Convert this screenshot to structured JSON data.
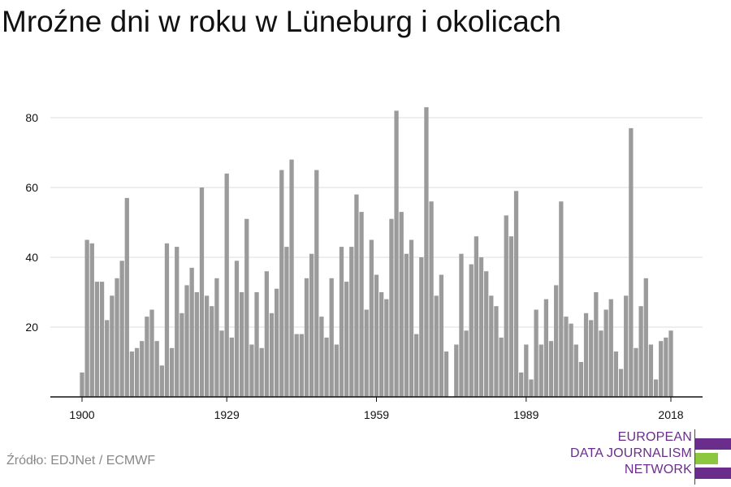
{
  "title": "Mroźne dni w roku w Lüneburg i okolicach",
  "source": "Źródło: EDJNet / ECMWF",
  "logo": {
    "lines": [
      "EUROPEAN",
      "DATA JOURNALISM",
      "NETWORK"
    ],
    "colors": {
      "purple": "#6a2d8c",
      "green": "#8dc63f"
    }
  },
  "colors": {
    "bar": "#9b9b9b",
    "grid": "#dddddd",
    "axis": "#111111"
  },
  "chart_data": {
    "type": "bar",
    "title": "Mroźne dni w roku w Lüneburg i okolicach",
    "xlabel": "",
    "ylabel": "",
    "x_tick_labels": [
      "1900",
      "1929",
      "1959",
      "1989",
      "2018"
    ],
    "y_ticks": [
      20,
      40,
      60,
      80
    ],
    "ylim": [
      0,
      88
    ],
    "grid": true,
    "categories": [
      1900,
      1901,
      1902,
      1903,
      1904,
      1905,
      1906,
      1907,
      1908,
      1909,
      1910,
      1911,
      1912,
      1913,
      1914,
      1915,
      1916,
      1917,
      1918,
      1919,
      1920,
      1921,
      1922,
      1923,
      1924,
      1925,
      1926,
      1927,
      1928,
      1929,
      1930,
      1931,
      1932,
      1933,
      1934,
      1935,
      1936,
      1937,
      1938,
      1939,
      1940,
      1941,
      1942,
      1943,
      1944,
      1945,
      1946,
      1947,
      1948,
      1949,
      1950,
      1951,
      1952,
      1953,
      1954,
      1955,
      1956,
      1957,
      1958,
      1959,
      1960,
      1961,
      1962,
      1963,
      1964,
      1965,
      1966,
      1967,
      1968,
      1969,
      1970,
      1971,
      1972,
      1973,
      1974,
      1975,
      1976,
      1977,
      1978,
      1979,
      1980,
      1981,
      1982,
      1983,
      1984,
      1985,
      1986,
      1987,
      1988,
      1989,
      1990,
      1991,
      1992,
      1993,
      1994,
      1995,
      1996,
      1997,
      1998,
      1999,
      2000,
      2001,
      2002,
      2003,
      2004,
      2005,
      2006,
      2007,
      2008,
      2009,
      2010,
      2011,
      2012,
      2013,
      2014,
      2015,
      2016,
      2017,
      2018
    ],
    "values": [
      7,
      45,
      44,
      33,
      33,
      22,
      29,
      34,
      39,
      57,
      13,
      14,
      16,
      23,
      25,
      16,
      9,
      44,
      14,
      43,
      24,
      32,
      37,
      30,
      60,
      29,
      26,
      34,
      19,
      64,
      17,
      39,
      30,
      51,
      15,
      30,
      14,
      36,
      24,
      31,
      65,
      43,
      68,
      18,
      18,
      34,
      41,
      65,
      23,
      17,
      34,
      15,
      43,
      33,
      43,
      58,
      53,
      25,
      45,
      35,
      30,
      28,
      51,
      82,
      53,
      41,
      45,
      18,
      40,
      83,
      56,
      29,
      35,
      13,
      0,
      15,
      41,
      19,
      38,
      46,
      40,
      36,
      29,
      26,
      17,
      52,
      46,
      59,
      7,
      15,
      5,
      25,
      15,
      28,
      16,
      32,
      56,
      23,
      21,
      15,
      10,
      24,
      22,
      30,
      19,
      25,
      28,
      13,
      8,
      29,
      77,
      14,
      26,
      34,
      15,
      5,
      16,
      17,
      19
    ]
  }
}
